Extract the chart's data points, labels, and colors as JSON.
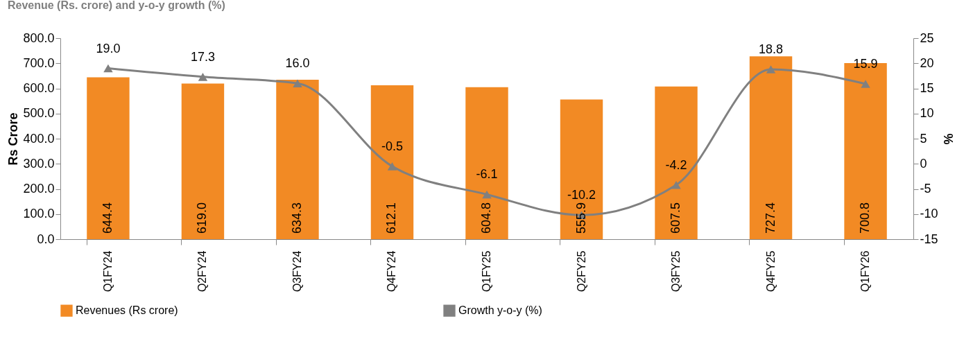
{
  "chart_data": {
    "type": "bar",
    "title": "Revenue (Rs. crore) and y-o-y growth (%)",
    "ylabel": "Rs Crore",
    "y2label": "%",
    "categories": [
      "Q1FY24",
      "Q2FY24",
      "Q3FY24",
      "Q4FY24",
      "Q1FY25",
      "Q2FY25",
      "Q3FY25",
      "Q4FY25",
      "Q1FY26"
    ],
    "series": [
      {
        "name": "Revenues (Rs crore)",
        "color": "#f28a24",
        "values": [
          644.4,
          619.0,
          634.3,
          612.1,
          604.8,
          555.9,
          607.5,
          727.4,
          700.8
        ],
        "value_labels": [
          "644.4",
          "619.0",
          "634.3",
          "612.1",
          "604.8",
          "555.9",
          "607.5",
          "727.4",
          "700.8"
        ]
      },
      {
        "name": "Growth y-o-y (%)",
        "type": "line",
        "axis": "y2",
        "color": "#808080",
        "marker": "triangle",
        "values": [
          19.0,
          17.3,
          16.0,
          -0.5,
          -6.1,
          -10.2,
          -4.2,
          18.8,
          15.9
        ],
        "value_labels": [
          "19.0",
          "17.3",
          "16.0",
          "-0.5",
          "-6.1",
          "-10.2",
          "-4.2",
          "18.8",
          "15.9"
        ]
      }
    ],
    "ylim": [
      0,
      800
    ],
    "yticks": [
      {
        "value": 0,
        "label": "0.0"
      },
      {
        "value": 100,
        "label": "100.0"
      },
      {
        "value": 200,
        "label": "200.0"
      },
      {
        "value": 300,
        "label": "300.0"
      },
      {
        "value": 400,
        "label": "400.0"
      },
      {
        "value": 500,
        "label": "500.0"
      },
      {
        "value": 600,
        "label": "600.0"
      },
      {
        "value": 700,
        "label": "700.0"
      },
      {
        "value": 800,
        "label": "800.0"
      }
    ],
    "y2lim": [
      -15,
      25
    ],
    "y2ticks": [
      -15,
      -10,
      -5,
      0,
      5,
      10,
      15,
      20,
      25
    ],
    "legend": "bottom",
    "grid": false
  }
}
